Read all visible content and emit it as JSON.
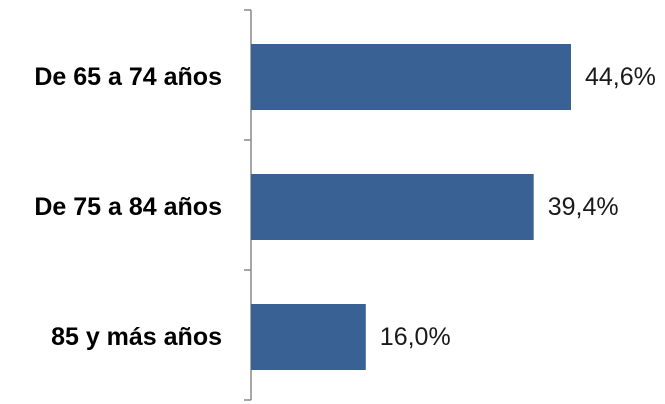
{
  "chart_data": {
    "type": "bar",
    "orientation": "horizontal",
    "categories": [
      "De 65 a 74 años",
      "De 75 a 84 años",
      "85 y más años"
    ],
    "values": [
      44.6,
      39.4,
      16.0
    ],
    "value_labels": [
      "44,6%",
      "39,4%",
      "16,0%"
    ],
    "unit": "%",
    "xlim": [
      0,
      50
    ],
    "grid": false,
    "legend": "none",
    "bar_color": "#3a6194"
  }
}
